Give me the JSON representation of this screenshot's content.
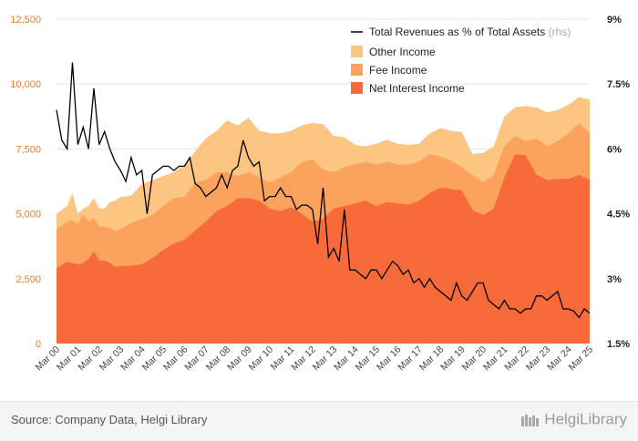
{
  "chart_data": {
    "type": "area",
    "stacked": true,
    "series_left": [
      {
        "name": "Net Interest Income",
        "color": "#f96a3a"
      },
      {
        "name": "Fee Income",
        "color": "#fba35c"
      },
      {
        "name": "Other Income",
        "color": "#fcc581"
      }
    ],
    "series_right": {
      "name": "Total Revenues as % of Total Assets",
      "suffix": "(rhs)",
      "color": "#000000"
    },
    "legend": [
      "Total Revenues as % of Total Assets",
      "Other Income",
      "Fee Income",
      "Net Interest Income"
    ],
    "legend_suffix": "(rhs)",
    "left_axis": {
      "min": 0,
      "max": 12500,
      "ticks": [
        "0",
        "2,500",
        "5,000",
        "7,500",
        "10,000",
        "12,500"
      ],
      "tick_values": [
        0,
        2500,
        5000,
        7500,
        10000,
        12500
      ],
      "color": "#ee7a2a"
    },
    "right_axis": {
      "min": 1.5,
      "max": 9,
      "ticks": [
        "1.5%",
        "3%",
        "4.5%",
        "6%",
        "7.5%",
        "9%"
      ],
      "tick_values": [
        1.5,
        3,
        4.5,
        6,
        7.5,
        9
      ]
    },
    "x_labels": [
      "Mar 00",
      "Mar 01",
      "Mar 02",
      "Mar 03",
      "Mar 04",
      "Mar 05",
      "Mar 06",
      "Mar 07",
      "Mar 08",
      "Mar 09",
      "Mar 10",
      "Mar 11",
      "Mar 12",
      "Mar 13",
      "Mar 14",
      "Mar 15",
      "Mar 16",
      "Mar 17",
      "Mar 18",
      "Mar 19",
      "Mar 20",
      "Mar 21",
      "Mar 22",
      "Mar 23",
      "Mar 24",
      "Mar 25"
    ],
    "quarters": 101,
    "anchors": {
      "idx": [
        0,
        2,
        3,
        4,
        5,
        6,
        7,
        8,
        9,
        10,
        11,
        12,
        14,
        16,
        18,
        20,
        22,
        24,
        26,
        28,
        30,
        32,
        34,
        36,
        38,
        40,
        42,
        44,
        46,
        48,
        50,
        52,
        54,
        56,
        58,
        60,
        62,
        64,
        66,
        68,
        70,
        72,
        74,
        76,
        78,
        80,
        82,
        84,
        86,
        88,
        90,
        92,
        94,
        96,
        98,
        100
      ],
      "nii": [
        2900,
        3150,
        3100,
        3050,
        3100,
        3250,
        3550,
        3200,
        3200,
        3100,
        2950,
        3000,
        3000,
        3050,
        3300,
        3600,
        3850,
        4000,
        4350,
        4700,
        5100,
        5300,
        5600,
        5600,
        5500,
        5200,
        5100,
        5250,
        5000,
        4700,
        4800,
        5200,
        5300,
        5400,
        5500,
        5300,
        5450,
        5400,
        5350,
        5500,
        5800,
        6000,
        5950,
        5900,
        5150,
        4950,
        5200,
        6400,
        7300,
        7250,
        6500,
        6300,
        6350,
        6350,
        6500,
        6300
      ],
      "fee": [
        4400,
        4700,
        4750,
        4600,
        4950,
        4700,
        4850,
        4500,
        4500,
        4450,
        4350,
        4400,
        4650,
        4800,
        4950,
        5300,
        5600,
        5650,
        6200,
        6300,
        6600,
        6600,
        6450,
        6600,
        6400,
        6200,
        6400,
        6600,
        7000,
        7100,
        6700,
        6600,
        6800,
        6900,
        7000,
        6900,
        7000,
        6900,
        6900,
        7000,
        7300,
        7200,
        7050,
        6800,
        6500,
        6200,
        6500,
        7600,
        8000,
        7800,
        7900,
        7600,
        7800,
        8100,
        8500,
        8100
      ],
      "oth": [
        5000,
        5300,
        5800,
        5000,
        5200,
        5300,
        5600,
        5200,
        5200,
        5450,
        5500,
        5650,
        5700,
        6150,
        6300,
        6450,
        6600,
        6900,
        7400,
        7900,
        8200,
        8600,
        8400,
        8700,
        8200,
        8100,
        8100,
        8200,
        8400,
        8500,
        8450,
        8000,
        7950,
        7650,
        7600,
        7700,
        7850,
        7700,
        7650,
        7700,
        8100,
        8300,
        8200,
        8150,
        7300,
        7350,
        7600,
        8750,
        9100,
        9150,
        9100,
        8900,
        9000,
        9200,
        9500,
        9400
      ]
    },
    "line_quarters": [
      [
        0,
        6.9
      ],
      [
        1,
        6.2
      ],
      [
        2,
        6.0
      ],
      [
        3,
        8.0
      ],
      [
        4,
        6.1
      ],
      [
        5,
        6.5
      ],
      [
        6,
        6.0
      ],
      [
        7,
        7.4
      ],
      [
        8,
        6.1
      ],
      [
        9,
        6.4
      ],
      [
        10,
        6.0
      ],
      [
        11,
        5.7
      ],
      [
        12,
        5.5
      ],
      [
        13,
        5.25
      ],
      [
        14,
        5.8
      ],
      [
        15,
        5.4
      ],
      [
        16,
        5.5
      ],
      [
        17,
        4.5
      ],
      [
        18,
        5.4
      ],
      [
        19,
        5.5
      ],
      [
        20,
        5.6
      ],
      [
        21,
        5.6
      ],
      [
        22,
        5.5
      ],
      [
        23,
        5.6
      ],
      [
        24,
        5.6
      ],
      [
        25,
        5.8
      ],
      [
        26,
        5.2
      ],
      [
        27,
        5.1
      ],
      [
        28,
        4.9
      ],
      [
        29,
        5.0
      ],
      [
        30,
        5.1
      ],
      [
        31,
        5.4
      ],
      [
        32,
        5.1
      ],
      [
        33,
        5.5
      ],
      [
        34,
        5.6
      ],
      [
        35,
        6.2
      ],
      [
        36,
        5.8
      ],
      [
        37,
        5.6
      ],
      [
        38,
        5.7
      ],
      [
        39,
        4.8
      ],
      [
        40,
        4.9
      ],
      [
        41,
        4.9
      ],
      [
        42,
        5.1
      ],
      [
        43,
        4.9
      ],
      [
        44,
        4.9
      ],
      [
        45,
        4.6
      ],
      [
        46,
        4.7
      ],
      [
        47,
        4.7
      ],
      [
        48,
        4.6
      ],
      [
        49,
        3.8
      ],
      [
        50,
        5.1
      ],
      [
        51,
        3.5
      ],
      [
        52,
        3.7
      ],
      [
        53,
        3.4
      ],
      [
        54,
        4.6
      ],
      [
        55,
        3.2
      ],
      [
        56,
        3.2
      ],
      [
        57,
        3.1
      ],
      [
        58,
        3.0
      ],
      [
        59,
        3.2
      ],
      [
        60,
        3.2
      ],
      [
        61,
        3.0
      ],
      [
        62,
        3.2
      ],
      [
        63,
        3.4
      ],
      [
        64,
        3.3
      ],
      [
        65,
        3.1
      ],
      [
        66,
        3.2
      ],
      [
        67,
        2.9
      ],
      [
        68,
        3.0
      ],
      [
        69,
        2.8
      ],
      [
        70,
        3.0
      ],
      [
        71,
        2.8
      ],
      [
        72,
        2.7
      ],
      [
        73,
        2.6
      ],
      [
        74,
        2.5
      ],
      [
        75,
        2.9
      ],
      [
        76,
        2.6
      ],
      [
        77,
        2.5
      ],
      [
        78,
        2.7
      ],
      [
        79,
        2.9
      ],
      [
        80,
        2.9
      ],
      [
        81,
        2.5
      ],
      [
        82,
        2.4
      ],
      [
        83,
        2.3
      ],
      [
        84,
        2.5
      ],
      [
        85,
        2.3
      ],
      [
        86,
        2.3
      ],
      [
        87,
        2.2
      ],
      [
        88,
        2.3
      ],
      [
        89,
        2.3
      ],
      [
        90,
        2.6
      ],
      [
        91,
        2.6
      ],
      [
        92,
        2.5
      ],
      [
        93,
        2.6
      ],
      [
        94,
        2.7
      ],
      [
        95,
        2.3
      ],
      [
        96,
        2.3
      ],
      [
        97,
        2.25
      ],
      [
        98,
        2.1
      ],
      [
        99,
        2.3
      ],
      [
        100,
        2.2
      ]
    ]
  },
  "footer": {
    "source": "Source: Company Data, Helgi Library",
    "brand": "HelgiLibrary"
  }
}
